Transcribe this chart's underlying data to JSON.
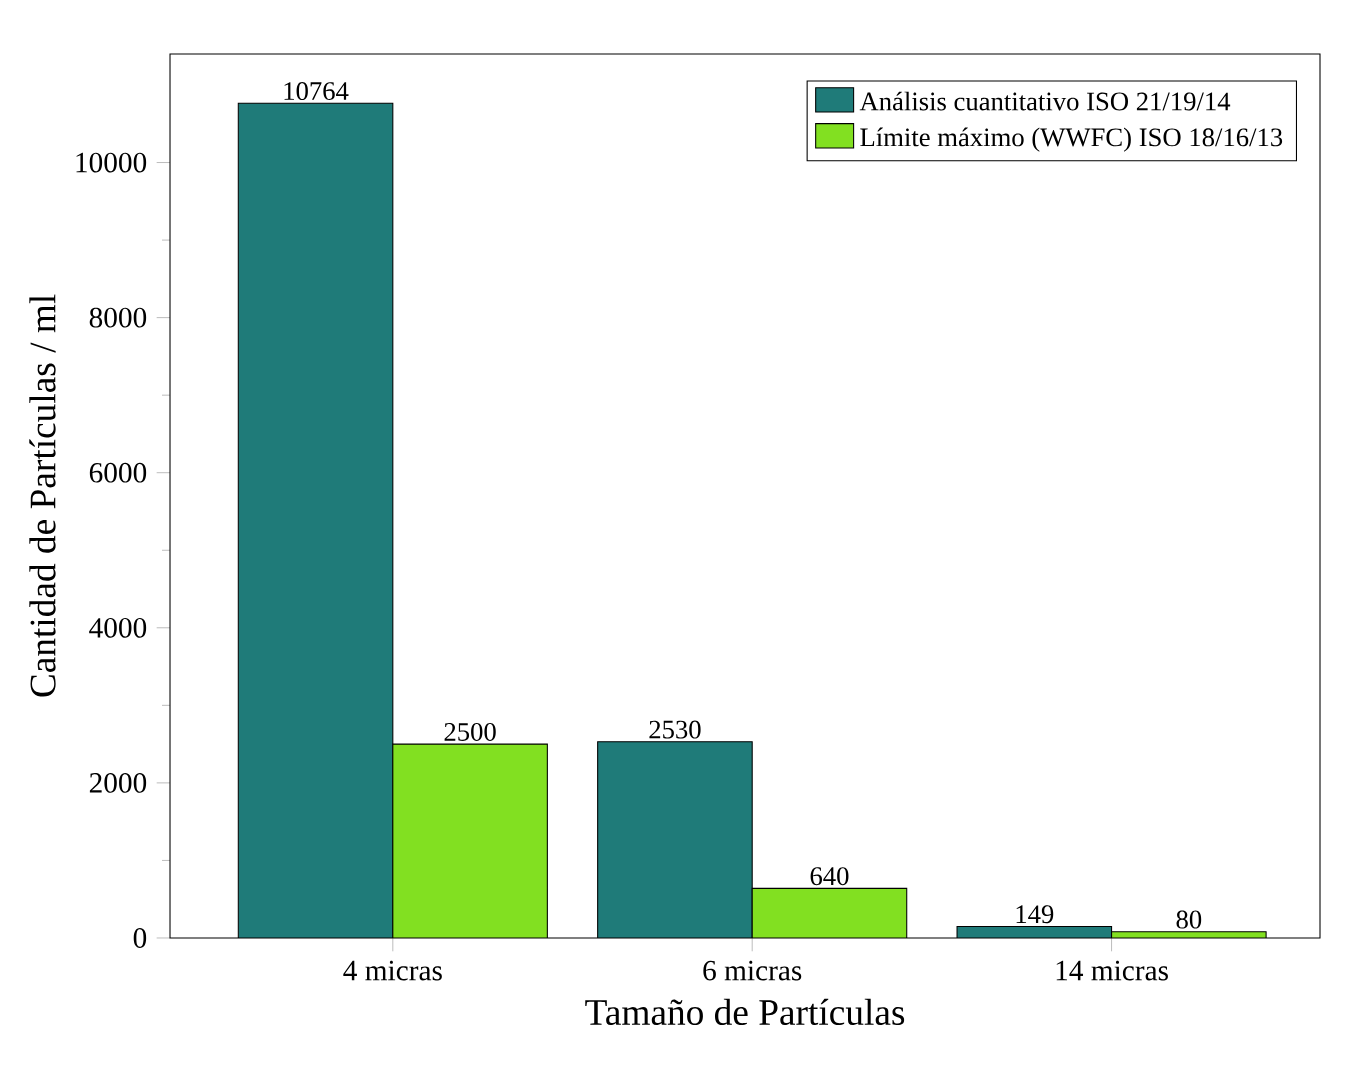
{
  "chart_data": {
    "type": "bar",
    "xlabel": "Tamaño de Partículas",
    "ylabel": "Cantidad de Partículas / ml",
    "categories": [
      "4 micras",
      "6 micras",
      "14 micras"
    ],
    "series": [
      {
        "name": "Análisis cuantitativo ISO 21/19/14",
        "color": "#1f7b79",
        "values": [
          10764,
          2530,
          149
        ]
      },
      {
        "name": "Límite máximo (WWFC) ISO 18/16/13",
        "color": "#82e021",
        "values": [
          2500,
          640,
          80
        ]
      }
    ],
    "ylim": [
      0,
      11400
    ],
    "yticks": [
      0,
      2000,
      4000,
      6000,
      8000,
      10000
    ],
    "data_labels": true,
    "legend": "top right",
    "grid": false
  }
}
